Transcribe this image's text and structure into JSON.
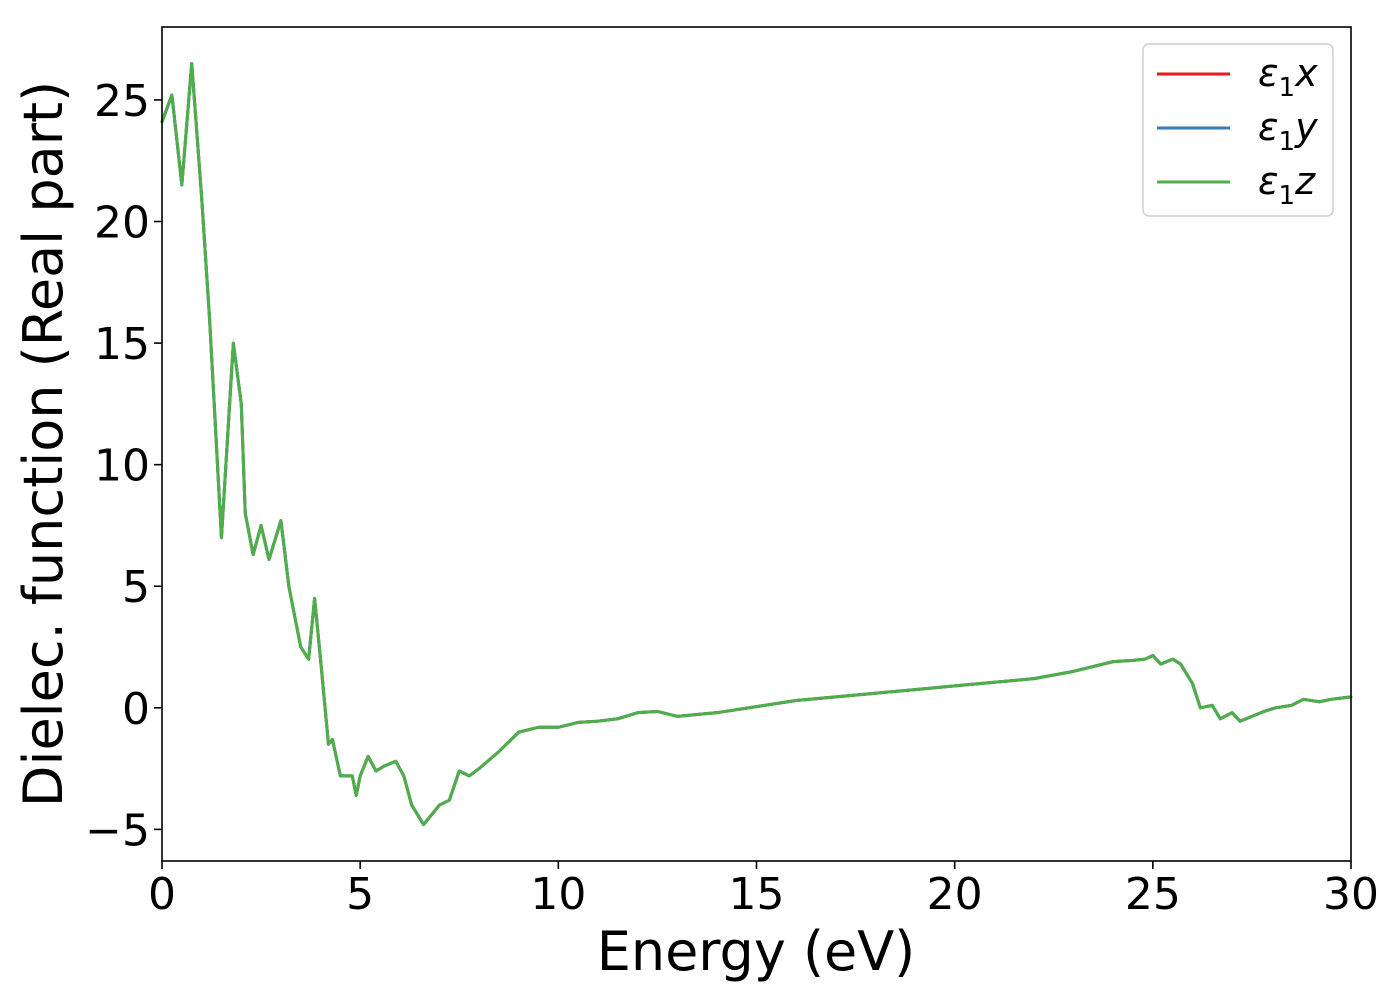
{
  "chart_data": {
    "type": "line",
    "title": "",
    "xlabel": "Energy (eV)",
    "ylabel": "Dielec. function (Real part)",
    "xlim": [
      0,
      30
    ],
    "ylim": [
      -6.3,
      28
    ],
    "xticks": [
      0,
      5,
      10,
      15,
      20,
      25,
      30
    ],
    "yticks": [
      -5,
      0,
      5,
      10,
      15,
      20,
      25
    ],
    "xtick_labels": [
      "0",
      "5",
      "10",
      "15",
      "20",
      "25",
      "30"
    ],
    "ytick_labels": [
      "−5",
      "0",
      "5",
      "10",
      "15",
      "20",
      "25"
    ],
    "grid": false,
    "legend_position": "top-right",
    "x": [
      0.0,
      0.25,
      0.5,
      0.75,
      1.0,
      1.2,
      1.5,
      1.8,
      2.0,
      2.1,
      2.3,
      2.5,
      2.7,
      3.0,
      3.2,
      3.5,
      3.7,
      3.85,
      4.0,
      4.2,
      4.3,
      4.5,
      4.8,
      4.9,
      5.0,
      5.2,
      5.4,
      5.6,
      5.9,
      6.1,
      6.3,
      6.6,
      7.0,
      7.25,
      7.5,
      7.75,
      8.0,
      8.5,
      9.0,
      9.5,
      10.0,
      10.5,
      11.0,
      11.5,
      12.0,
      12.5,
      13.0,
      14.0,
      15.0,
      16.0,
      17.0,
      18.0,
      19.0,
      20.0,
      21.0,
      22.0,
      23.0,
      24.0,
      24.5,
      24.8,
      25.0,
      25.2,
      25.5,
      25.7,
      26.0,
      26.2,
      26.5,
      26.7,
      27.0,
      27.2,
      27.5,
      27.8,
      28.1,
      28.5,
      28.8,
      29.2,
      29.5,
      30.0
    ],
    "series": [
      {
        "name": "ε₁x",
        "color": "#e41a1c",
        "y": [
          24.1,
          25.2,
          21.5,
          26.5,
          21.0,
          16.0,
          7.0,
          15.0,
          12.5,
          8.0,
          6.3,
          7.5,
          6.1,
          7.7,
          5.0,
          2.5,
          2.0,
          4.5,
          2.0,
          -1.5,
          -1.3,
          -2.8,
          -2.8,
          -3.6,
          -2.8,
          -2.0,
          -2.6,
          -2.4,
          -2.2,
          -2.8,
          -4.0,
          -4.8,
          -4.0,
          -3.8,
          -2.6,
          -2.8,
          -2.5,
          -1.8,
          -1.0,
          -0.8,
          -0.8,
          -0.6,
          -0.55,
          -0.45,
          -0.2,
          -0.15,
          -0.35,
          -0.2,
          0.05,
          0.3,
          0.45,
          0.6,
          0.75,
          0.9,
          1.05,
          1.2,
          1.5,
          1.9,
          1.95,
          2.0,
          2.15,
          1.8,
          2.0,
          1.8,
          1.0,
          0.0,
          0.1,
          -0.45,
          -0.2,
          -0.55,
          -0.35,
          -0.15,
          0.0,
          0.1,
          0.35,
          0.25,
          0.35,
          0.45
        ]
      },
      {
        "name": "ε₁y",
        "color": "#377eb8",
        "y": [
          24.1,
          25.2,
          21.5,
          26.5,
          21.0,
          16.0,
          7.0,
          15.0,
          12.5,
          8.0,
          6.3,
          7.5,
          6.1,
          7.7,
          5.0,
          2.5,
          2.0,
          4.5,
          2.0,
          -1.5,
          -1.3,
          -2.8,
          -2.8,
          -3.6,
          -2.8,
          -2.0,
          -2.6,
          -2.4,
          -2.2,
          -2.8,
          -4.0,
          -4.8,
          -4.0,
          -3.8,
          -2.6,
          -2.8,
          -2.5,
          -1.8,
          -1.0,
          -0.8,
          -0.8,
          -0.6,
          -0.55,
          -0.45,
          -0.2,
          -0.15,
          -0.35,
          -0.2,
          0.05,
          0.3,
          0.45,
          0.6,
          0.75,
          0.9,
          1.05,
          1.2,
          1.5,
          1.9,
          1.95,
          2.0,
          2.15,
          1.8,
          2.0,
          1.8,
          1.0,
          0.0,
          0.1,
          -0.45,
          -0.2,
          -0.55,
          -0.35,
          -0.15,
          0.0,
          0.1,
          0.35,
          0.25,
          0.35,
          0.45
        ]
      },
      {
        "name": "ε₁z",
        "color": "#4daf4a",
        "y": [
          24.1,
          25.2,
          21.5,
          26.5,
          21.0,
          16.0,
          7.0,
          15.0,
          12.5,
          8.0,
          6.3,
          7.5,
          6.1,
          7.7,
          5.0,
          2.5,
          2.0,
          4.5,
          2.0,
          -1.5,
          -1.3,
          -2.8,
          -2.8,
          -3.6,
          -2.8,
          -2.0,
          -2.6,
          -2.4,
          -2.2,
          -2.8,
          -4.0,
          -4.8,
          -4.0,
          -3.8,
          -2.6,
          -2.8,
          -2.5,
          -1.8,
          -1.0,
          -0.8,
          -0.8,
          -0.6,
          -0.55,
          -0.45,
          -0.2,
          -0.15,
          -0.35,
          -0.2,
          0.05,
          0.3,
          0.45,
          0.6,
          0.75,
          0.9,
          1.05,
          1.2,
          1.5,
          1.9,
          1.95,
          2.0,
          2.15,
          1.8,
          2.0,
          1.8,
          1.0,
          0.0,
          0.1,
          -0.45,
          -0.2,
          -0.55,
          -0.35,
          -0.15,
          0.0,
          0.1,
          0.35,
          0.25,
          0.35,
          0.45
        ]
      }
    ],
    "legend": [
      {
        "symbol": "ε",
        "sub": "1",
        "axis": "x",
        "color": "#e41a1c"
      },
      {
        "symbol": "ε",
        "sub": "1",
        "axis": "y",
        "color": "#377eb8"
      },
      {
        "symbol": "ε",
        "sub": "1",
        "axis": "z",
        "color": "#4daf4a"
      }
    ]
  }
}
